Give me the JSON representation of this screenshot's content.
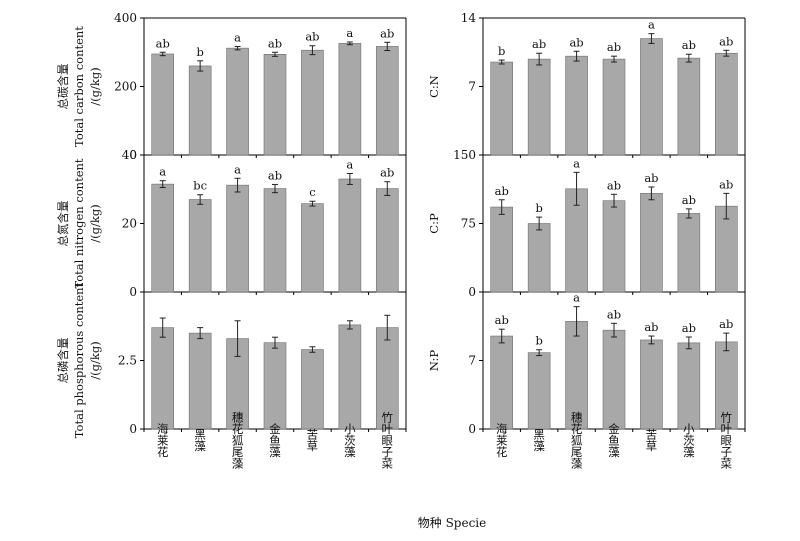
{
  "figure": {
    "xlabel": "物种 Specie",
    "categories": [
      "海莱花",
      "黑藻",
      "穗花狐尾藻",
      "金鱼藻",
      "苦草",
      "小茨藻",
      "竹叶眼子菜"
    ]
  },
  "chart_data": [
    {
      "type": "bar",
      "ylabel": [
        "总碳含量",
        "Total carbon content",
        "/(g/kg)"
      ],
      "ylim": [
        0,
        400
      ],
      "yticks": [
        0,
        200,
        400
      ],
      "values": [
        295,
        260,
        312,
        294,
        306,
        326,
        317
      ],
      "errors": [
        5,
        15,
        5,
        6,
        13,
        4,
        12
      ],
      "letters": [
        "ab",
        "b",
        "a",
        "ab",
        "ab",
        "a",
        "ab"
      ]
    },
    {
      "type": "bar",
      "ylabel": [
        "C:N"
      ],
      "ylim": [
        0,
        14
      ],
      "yticks": [
        7,
        14
      ],
      "values": [
        9.5,
        9.8,
        10.1,
        9.8,
        11.9,
        9.9,
        10.4
      ],
      "errors": [
        0.2,
        0.6,
        0.5,
        0.3,
        0.5,
        0.4,
        0.3
      ],
      "letters": [
        "b",
        "ab",
        "ab",
        "ab",
        "a",
        "ab",
        "ab"
      ]
    },
    {
      "type": "bar",
      "ylabel": [
        "总氮含量",
        "Total nitrogen content",
        "/(g/kg)"
      ],
      "ylim": [
        0,
        40
      ],
      "yticks": [
        0,
        20,
        40
      ],
      "values": [
        31.5,
        27.0,
        31.2,
        30.2,
        25.8,
        33.0,
        30.2
      ],
      "errors": [
        1.0,
        1.4,
        2.0,
        1.2,
        0.7,
        1.6,
        2.0
      ],
      "letters": [
        "a",
        "bc",
        "a",
        "ab",
        "c",
        "a",
        "ab"
      ]
    },
    {
      "type": "bar",
      "ylabel": [
        "C:P"
      ],
      "ylim": [
        0,
        150
      ],
      "yticks": [
        0,
        75,
        150
      ],
      "values": [
        93,
        75,
        113,
        100,
        108,
        86,
        94
      ],
      "errors": [
        8,
        7,
        18,
        7,
        7,
        5,
        14
      ],
      "letters": [
        "ab",
        "b",
        "a",
        "ab",
        "ab",
        "ab",
        "ab"
      ]
    },
    {
      "type": "bar",
      "ylabel": [
        "总磷含量",
        "Total phosphorous content",
        "/(g/kg)"
      ],
      "ylim": [
        0,
        5
      ],
      "yticks": [
        0,
        2.5
      ],
      "values": [
        3.7,
        3.5,
        3.3,
        3.15,
        2.9,
        3.8,
        3.7
      ],
      "errors": [
        0.35,
        0.2,
        0.65,
        0.2,
        0.1,
        0.15,
        0.45
      ],
      "letters": []
    },
    {
      "type": "bar",
      "ylabel": [
        "N:P"
      ],
      "ylim": [
        0,
        14
      ],
      "yticks": [
        0,
        7
      ],
      "values": [
        9.5,
        7.8,
        11.0,
        10.1,
        9.1,
        8.8,
        8.9
      ],
      "errors": [
        0.7,
        0.3,
        1.5,
        0.7,
        0.4,
        0.6,
        0.9
      ],
      "letters": [
        "ab",
        "b",
        "a",
        "ab",
        "ab",
        "ab",
        "ab"
      ]
    }
  ]
}
